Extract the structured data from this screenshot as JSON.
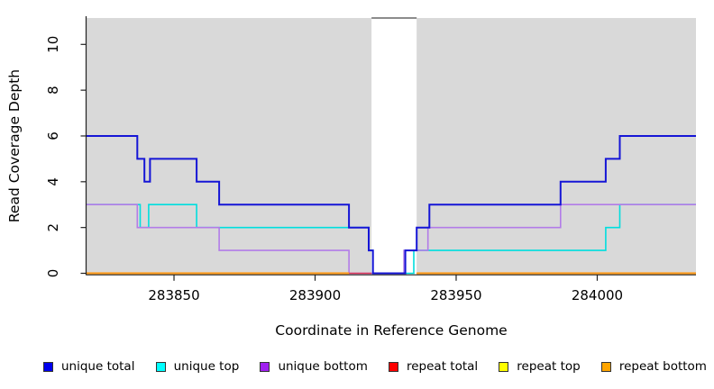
{
  "chart_data": {
    "type": "line",
    "step": true,
    "title": "",
    "xlabel": "Coordinate in Reference Genome",
    "ylabel": "Read Coverage Depth",
    "xlim": [
      283819,
      284035
    ],
    "ylim": [
      0,
      11.15
    ],
    "x_ticks": [
      283850,
      283900,
      283950,
      284000
    ],
    "x_tick_labels": [
      "283850",
      "283900",
      "283950",
      "284000"
    ],
    "y_ticks": [
      0,
      2,
      4,
      6,
      8,
      10
    ],
    "y_tick_labels": [
      "0",
      "2",
      "4",
      "6",
      "8",
      "10"
    ],
    "grid": false,
    "plot_bg_color": "#d9d9d9",
    "axis_color": "#222222",
    "gap_region": {
      "x_start": 283920,
      "x_end": 283936,
      "fill": "#ffffff",
      "top_line_color": "#8c8c8c"
    },
    "legend_position": "bottom",
    "series": [
      {
        "name": "unique top",
        "color": "#00ffff",
        "line_color": "#00dede",
        "line_width": 1.6,
        "segments": [
          [
            [
              283819,
              3
            ],
            [
              283838,
              2
            ],
            [
              283841,
              3
            ],
            [
              283858,
              2
            ],
            [
              283919,
              1
            ],
            [
              283920.5,
              0
            ],
            [
              283935,
              1
            ],
            [
              284003,
              2
            ],
            [
              284008,
              3
            ],
            [
              284035,
              3
            ]
          ]
        ]
      },
      {
        "name": "unique bottom",
        "color": "#a020f0",
        "line_color": "#b27ce8",
        "line_width": 1.6,
        "segments": [
          [
            [
              283819,
              3
            ],
            [
              283837,
              2
            ],
            [
              283866,
              1
            ],
            [
              283912,
              0
            ],
            [
              283931.5,
              1
            ],
            [
              283940,
              2
            ],
            [
              283987,
              3
            ],
            [
              284035,
              3
            ]
          ]
        ]
      },
      {
        "name": "unique total",
        "color": "#0000ee",
        "line_color": "#1515d6",
        "line_width": 2,
        "segments": [
          [
            [
              283819,
              6
            ],
            [
              283837,
              5
            ],
            [
              283839.5,
              4
            ],
            [
              283841.5,
              5
            ],
            [
              283858,
              4
            ],
            [
              283866,
              3
            ],
            [
              283912,
              2
            ],
            [
              283919,
              1
            ],
            [
              283920.5,
              0
            ],
            [
              283932,
              1
            ],
            [
              283936,
              2
            ],
            [
              283940.5,
              3
            ],
            [
              283987,
              4
            ],
            [
              284003,
              5
            ],
            [
              284008,
              6
            ],
            [
              284035,
              6
            ]
          ]
        ]
      },
      {
        "name": "repeat total",
        "color": "#ff0000",
        "line_color": "#e03a5e",
        "line_width": 1.6,
        "segments": [
          [
            [
              283819,
              0
            ],
            [
              283920,
              0
            ]
          ],
          [
            [
              283936,
              0
            ],
            [
              284035,
              0
            ]
          ]
        ]
      },
      {
        "name": "repeat top",
        "color": "#ffff00",
        "line_color": "#f5e400",
        "line_width": 1.6,
        "segments": [
          [
            [
              283819,
              0
            ],
            [
              283912,
              0
            ]
          ],
          [
            [
              283936,
              0
            ],
            [
              284035,
              0
            ]
          ]
        ]
      },
      {
        "name": "repeat bottom",
        "color": "#ffa500",
        "line_color": "#ff9d1e",
        "line_width": 2.2,
        "segments": [
          [
            [
              283819,
              0
            ],
            [
              283912,
              0
            ]
          ],
          [
            [
              283936,
              0
            ],
            [
              284035,
              0
            ]
          ]
        ]
      }
    ]
  },
  "legend": {
    "items": [
      {
        "label": "unique total",
        "color": "#0000ee"
      },
      {
        "label": "unique top",
        "color": "#00ffff"
      },
      {
        "label": "unique bottom",
        "color": "#a020f0"
      },
      {
        "label": "repeat total",
        "color": "#ff0000"
      },
      {
        "label": "repeat top",
        "color": "#ffff00"
      },
      {
        "label": "repeat bottom",
        "color": "#ffa500"
      }
    ]
  }
}
